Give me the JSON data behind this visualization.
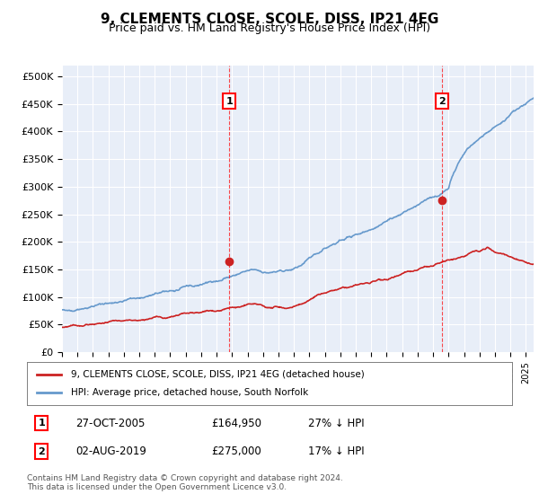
{
  "title": "9, CLEMENTS CLOSE, SCOLE, DISS, IP21 4EG",
  "subtitle": "Price paid vs. HM Land Registry's House Price Index (HPI)",
  "ylabel_ticks": [
    "£0",
    "£50K",
    "£100K",
    "£150K",
    "£200K",
    "£250K",
    "£300K",
    "£350K",
    "£400K",
    "£450K",
    "£500K"
  ],
  "ytick_values": [
    0,
    50000,
    100000,
    150000,
    200000,
    250000,
    300000,
    350000,
    400000,
    450000,
    500000
  ],
  "ylim": [
    0,
    520000
  ],
  "xlim_start": 1995.0,
  "xlim_end": 2025.5,
  "background_color": "#e8eef8",
  "plot_bg_color": "#e8eef8",
  "hpi_color": "#6699cc",
  "sale_color": "#cc2222",
  "marker1_date": 2005.82,
  "marker1_price": 164950,
  "marker2_date": 2019.58,
  "marker2_price": 275000,
  "marker1_label": "27-OCT-2005",
  "marker1_amount": "£164,950",
  "marker1_hpi": "27% ↓ HPI",
  "marker2_label": "02-AUG-2019",
  "marker2_amount": "£275,000",
  "marker2_hpi": "17% ↓ HPI",
  "legend_sale": "9, CLEMENTS CLOSE, SCOLE, DISS, IP21 4EG (detached house)",
  "legend_hpi": "HPI: Average price, detached house, South Norfolk",
  "footer": "Contains HM Land Registry data © Crown copyright and database right 2024.\nThis data is licensed under the Open Government Licence v3.0."
}
